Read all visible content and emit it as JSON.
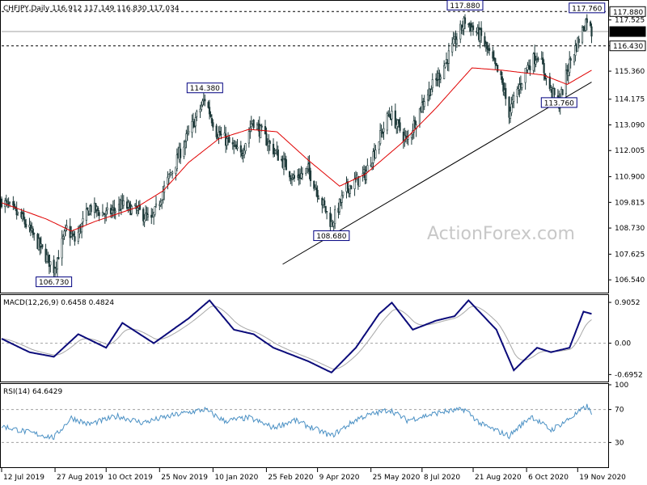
{
  "chart_data": {
    "type": "candlestick",
    "symbol": "CHFJPY",
    "timeframe": "Daily",
    "header": "CHFJPY,Daily  116.912 117.149 116.830 117.034",
    "ohlc_last": {
      "open": 116.912,
      "high": 117.149,
      "low": 116.83,
      "close": 117.034
    },
    "watermark": "ActionForex.com",
    "price_axis": {
      "range": [
        106.0,
        118.3
      ],
      "ticks": [
        106.54,
        107.625,
        108.73,
        109.815,
        110.9,
        112.005,
        113.09,
        114.175,
        115.36,
        116.43,
        117.525
      ]
    },
    "price_labels": [
      {
        "label": "117.880",
        "value": 117.88,
        "style": "boxed"
      },
      {
        "label": "117.034",
        "value": 117.034,
        "style": "current"
      },
      {
        "label": "116.430",
        "value": 116.43,
        "style": "boxed"
      }
    ],
    "horizontal_lines": [
      {
        "value": 117.88,
        "style": "dashed"
      },
      {
        "value": 117.034,
        "style": "solid-gray"
      },
      {
        "value": 116.43,
        "style": "dashed"
      }
    ],
    "swing_labels": [
      {
        "label": "114.380",
        "date": "2020-01-03",
        "value": 114.38,
        "pos": "above"
      },
      {
        "label": "106.730",
        "date": "2019-08-26",
        "value": 106.73,
        "pos": "below"
      },
      {
        "label": "108.680",
        "date": "2020-04-21",
        "value": 108.68,
        "pos": "below"
      },
      {
        "label": "117.880",
        "date": "2020-08-14",
        "value": 117.88,
        "pos": "above"
      },
      {
        "label": "113.760",
        "date": "2020-11-03",
        "value": 113.76,
        "pos": "above"
      },
      {
        "label": "117.760",
        "date": "2020-11-27",
        "value": 117.76,
        "pos": "above"
      }
    ],
    "trendline": {
      "start": {
        "date": "2020-03-10",
        "value": 107.2
      },
      "end": {
        "date": "2020-12-01",
        "value": 114.9
      }
    },
    "price_keypoints": [
      [
        "2019-07-12",
        109.9
      ],
      [
        "2019-07-30",
        109.1
      ],
      [
        "2019-08-08",
        108.4
      ],
      [
        "2019-08-26",
        107.0
      ],
      [
        "2019-09-06",
        108.7
      ],
      [
        "2019-09-13",
        108.2
      ],
      [
        "2019-09-26",
        109.6
      ],
      [
        "2019-10-10",
        109.3
      ],
      [
        "2019-10-24",
        109.7
      ],
      [
        "2019-11-08",
        109.4
      ],
      [
        "2019-11-18",
        109.0
      ],
      [
        "2019-11-29",
        110.4
      ],
      [
        "2019-12-17",
        112.4
      ],
      [
        "2020-01-03",
        114.2
      ],
      [
        "2020-01-13",
        112.8
      ],
      [
        "2020-01-24",
        112.3
      ],
      [
        "2020-02-03",
        111.8
      ],
      [
        "2020-02-13",
        113.3
      ],
      [
        "2020-02-27",
        112.3
      ],
      [
        "2020-03-09",
        111.6
      ],
      [
        "2020-03-20",
        110.8
      ],
      [
        "2020-04-01",
        111.2
      ],
      [
        "2020-04-21",
        108.9
      ],
      [
        "2020-05-04",
        110.4
      ],
      [
        "2020-05-20",
        111.0
      ],
      [
        "2020-06-10",
        113.6
      ],
      [
        "2020-06-25",
        112.4
      ],
      [
        "2020-07-10",
        114.2
      ],
      [
        "2020-07-24",
        115.3
      ],
      [
        "2020-08-14",
        117.5
      ],
      [
        "2020-08-28",
        116.8
      ],
      [
        "2020-09-14",
        115.0
      ],
      [
        "2020-09-21",
        113.6
      ],
      [
        "2020-10-06",
        115.5
      ],
      [
        "2020-10-16",
        116.1
      ],
      [
        "2020-10-27",
        114.5
      ],
      [
        "2020-11-03",
        114.0
      ],
      [
        "2020-11-12",
        115.7
      ],
      [
        "2020-11-27",
        117.6
      ],
      [
        "2020-12-01",
        117.0
      ]
    ],
    "moving_average_keypoints": [
      [
        "2019-07-12",
        109.8
      ],
      [
        "2019-08-20",
        109.1
      ],
      [
        "2019-09-10",
        108.6
      ],
      [
        "2019-09-30",
        109.0
      ],
      [
        "2019-11-05",
        109.6
      ],
      [
        "2019-11-28",
        110.3
      ],
      [
        "2019-12-20",
        111.5
      ],
      [
        "2020-01-15",
        112.5
      ],
      [
        "2020-02-10",
        112.9
      ],
      [
        "2020-03-05",
        112.8
      ],
      [
        "2020-04-01",
        111.6
      ],
      [
        "2020-04-28",
        110.5
      ],
      [
        "2020-05-20",
        111.0
      ],
      [
        "2020-06-20",
        112.3
      ],
      [
        "2020-07-20",
        113.8
      ],
      [
        "2020-08-20",
        115.5
      ],
      [
        "2020-09-15",
        115.4
      ],
      [
        "2020-10-20",
        115.2
      ],
      [
        "2020-11-10",
        114.8
      ],
      [
        "2020-12-01",
        115.4
      ]
    ],
    "macd": {
      "label": "MACD(12,26,9) 0.6458 0.4824",
      "value": 0.6458,
      "signal_value": 0.4824,
      "range": [
        -0.85,
        1.05
      ],
      "ticks": [
        "0.9052",
        "0.00",
        "-0.6952"
      ],
      "tick_values": [
        0.9052,
        0.0,
        -0.6952
      ],
      "keypoints": [
        [
          "2019-07-12",
          0.1
        ],
        [
          "2019-08-05",
          -0.2
        ],
        [
          "2019-08-26",
          -0.3
        ],
        [
          "2019-09-16",
          0.2
        ],
        [
          "2019-10-10",
          -0.1
        ],
        [
          "2019-10-24",
          0.45
        ],
        [
          "2019-11-20",
          0.0
        ],
        [
          "2019-12-20",
          0.55
        ],
        [
          "2020-01-07",
          0.95
        ],
        [
          "2020-01-28",
          0.3
        ],
        [
          "2020-02-14",
          0.2
        ],
        [
          "2020-03-02",
          -0.1
        ],
        [
          "2020-04-01",
          -0.4
        ],
        [
          "2020-04-21",
          -0.65
        ],
        [
          "2020-05-12",
          -0.1
        ],
        [
          "2020-06-01",
          0.65
        ],
        [
          "2020-06-12",
          0.9
        ],
        [
          "2020-06-30",
          0.3
        ],
        [
          "2020-07-20",
          0.5
        ],
        [
          "2020-08-05",
          0.6
        ],
        [
          "2020-08-17",
          0.95
        ],
        [
          "2020-09-10",
          0.3
        ],
        [
          "2020-09-25",
          -0.6
        ],
        [
          "2020-10-15",
          -0.1
        ],
        [
          "2020-10-27",
          -0.2
        ],
        [
          "2020-11-12",
          -0.1
        ],
        [
          "2020-11-24",
          0.7
        ],
        [
          "2020-12-01",
          0.65
        ]
      ]
    },
    "rsi": {
      "label": "RSI(14) 64.6429",
      "value": 64.6429,
      "range": [
        0,
        100
      ],
      "ticks": [
        "100",
        "70",
        "30",
        "0"
      ],
      "tick_values": [
        100,
        70,
        30,
        0
      ],
      "levels": [
        70,
        30
      ],
      "keypoints": [
        [
          "2019-07-12",
          50
        ],
        [
          "2019-08-05",
          42
        ],
        [
          "2019-08-26",
          36
        ],
        [
          "2019-09-10",
          60
        ],
        [
          "2019-09-25",
          52
        ],
        [
          "2019-10-20",
          62
        ],
        [
          "2019-11-10",
          54
        ],
        [
          "2019-12-10",
          64
        ],
        [
          "2020-01-03",
          70
        ],
        [
          "2020-01-20",
          56
        ],
        [
          "2020-02-10",
          60
        ],
        [
          "2020-03-02",
          48
        ],
        [
          "2020-03-20",
          57
        ],
        [
          "2020-04-21",
          38
        ],
        [
          "2020-05-15",
          60
        ],
        [
          "2020-06-10",
          70
        ],
        [
          "2020-06-25",
          57
        ],
        [
          "2020-07-25",
          67
        ],
        [
          "2020-08-14",
          70
        ],
        [
          "2020-08-28",
          52
        ],
        [
          "2020-09-21",
          38
        ],
        [
          "2020-10-10",
          62
        ],
        [
          "2020-10-27",
          45
        ],
        [
          "2020-11-10",
          57
        ],
        [
          "2020-11-27",
          74
        ],
        [
          "2020-12-01",
          64
        ]
      ]
    },
    "x_axis": {
      "range": [
        "2019-07-12",
        "2020-12-09"
      ],
      "ticks": [
        {
          "date": "2019-07-12",
          "label": "12 Jul 2019"
        },
        {
          "date": "2019-08-27",
          "label": "27 Aug 2019"
        },
        {
          "date": "2019-10-10",
          "label": "10 Oct 2019"
        },
        {
          "date": "2019-11-25",
          "label": "25 Nov 2019"
        },
        {
          "date": "2020-01-10",
          "label": "10 Jan 2020"
        },
        {
          "date": "2020-02-25",
          "label": "25 Feb 2020"
        },
        {
          "date": "2020-04-09",
          "label": "9 Apr 2020"
        },
        {
          "date": "2020-05-25",
          "label": "25 May 2020"
        },
        {
          "date": "2020-07-08",
          "label": "8 Jul 2020"
        },
        {
          "date": "2020-08-21",
          "label": "21 Aug 2020"
        },
        {
          "date": "2020-10-06",
          "label": "6 Oct 2020"
        },
        {
          "date": "2020-11-19",
          "label": "19 Nov 2020"
        }
      ]
    },
    "colors": {
      "candles": "#1e3a3a",
      "moving_average": "#e00000",
      "macd": "#0b0b7a",
      "signal": "#a8a8a8",
      "rsi": "#4a90c4",
      "trendline": "#000000",
      "label_border": "#000080"
    }
  }
}
